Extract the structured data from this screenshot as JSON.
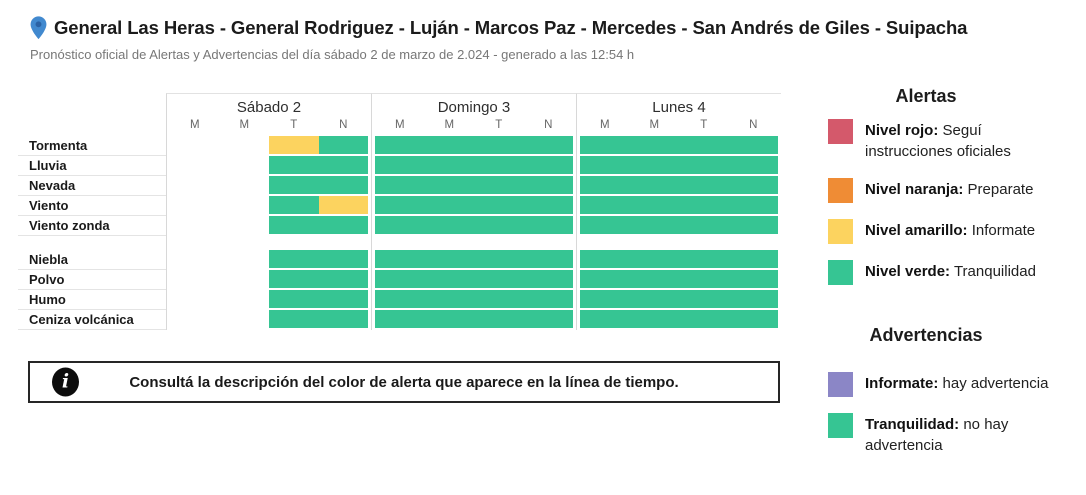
{
  "header": {
    "title": "General Las Heras - General Rodriguez - Luján - Marcos Paz - Mercedes - San Andrés de Giles - Suipacha",
    "subtitle": "Pronóstico oficial de Alertas y Advertencias del día sábado 2 de marzo de 2.024 - generado a las 12:54 h"
  },
  "colors": {
    "green": "#36c593",
    "yellow": "#fcd35f",
    "red": "#d4596b",
    "orange": "#ef8c35",
    "purple": "#8b86c6",
    "empty": "#ffffff",
    "pin_blue": "#4189cf",
    "pin_hole": "#2a62a5"
  },
  "grid": {
    "days": [
      {
        "label": "Sábado 2",
        "slots": [
          "M",
          "M",
          "T",
          "N"
        ]
      },
      {
        "label": "Domingo 3",
        "slots": [
          "M",
          "M",
          "T",
          "N"
        ]
      },
      {
        "label": "Lunes 4",
        "slots": [
          "M",
          "M",
          "T",
          "N"
        ]
      }
    ],
    "groups": [
      {
        "rows": [
          {
            "label": "Tormenta",
            "cells": [
              [
                "empty",
                "empty",
                "yellow",
                "green"
              ],
              [
                "green",
                "green",
                "green",
                "green"
              ],
              [
                "green",
                "green",
                "green",
                "green"
              ]
            ]
          },
          {
            "label": "Lluvia",
            "cells": [
              [
                "empty",
                "empty",
                "green",
                "green"
              ],
              [
                "green",
                "green",
                "green",
                "green"
              ],
              [
                "green",
                "green",
                "green",
                "green"
              ]
            ]
          },
          {
            "label": "Nevada",
            "cells": [
              [
                "empty",
                "empty",
                "green",
                "green"
              ],
              [
                "green",
                "green",
                "green",
                "green"
              ],
              [
                "green",
                "green",
                "green",
                "green"
              ]
            ]
          },
          {
            "label": "Viento",
            "cells": [
              [
                "empty",
                "empty",
                "green",
                "yellow"
              ],
              [
                "green",
                "green",
                "green",
                "green"
              ],
              [
                "green",
                "green",
                "green",
                "green"
              ]
            ]
          },
          {
            "label": "Viento zonda",
            "cells": [
              [
                "empty",
                "empty",
                "green",
                "green"
              ],
              [
                "green",
                "green",
                "green",
                "green"
              ],
              [
                "green",
                "green",
                "green",
                "green"
              ]
            ]
          }
        ]
      },
      {
        "rows": [
          {
            "label": "Niebla",
            "cells": [
              [
                "empty",
                "empty",
                "green",
                "green"
              ],
              [
                "green",
                "green",
                "green",
                "green"
              ],
              [
                "green",
                "green",
                "green",
                "green"
              ]
            ]
          },
          {
            "label": "Polvo",
            "cells": [
              [
                "empty",
                "empty",
                "green",
                "green"
              ],
              [
                "green",
                "green",
                "green",
                "green"
              ],
              [
                "green",
                "green",
                "green",
                "green"
              ]
            ]
          },
          {
            "label": "Humo",
            "cells": [
              [
                "empty",
                "empty",
                "green",
                "green"
              ],
              [
                "green",
                "green",
                "green",
                "green"
              ],
              [
                "green",
                "green",
                "green",
                "green"
              ]
            ]
          },
          {
            "label": "Ceniza volcánica",
            "cells": [
              [
                "empty",
                "empty",
                "green",
                "green"
              ],
              [
                "green",
                "green",
                "green",
                "green"
              ],
              [
                "green",
                "green",
                "green",
                "green"
              ]
            ]
          }
        ]
      }
    ]
  },
  "info_box": {
    "text": "Consultá la descripción del color de alerta que aparece en la línea de tiempo.",
    "icon_glyph": "i"
  },
  "legend": {
    "alerts_title": "Alertas",
    "alerts": [
      {
        "color": "red",
        "term": "Nivel rojo:",
        "desc": " Seguí instrucciones oficiales"
      },
      {
        "color": "orange",
        "term": "Nivel naranja:",
        "desc": " Preparate"
      },
      {
        "color": "yellow",
        "term": "Nivel amarillo:",
        "desc": " Informate"
      },
      {
        "color": "green",
        "term": "Nivel verde:",
        "desc": " Tranquilidad"
      }
    ],
    "warnings_title": "Advertencias",
    "warnings": [
      {
        "color": "purple",
        "term": "Informate:",
        "desc": " hay advertencia"
      },
      {
        "color": "green",
        "term": "Tranquilidad:",
        "desc": " no hay advertencia"
      }
    ]
  }
}
